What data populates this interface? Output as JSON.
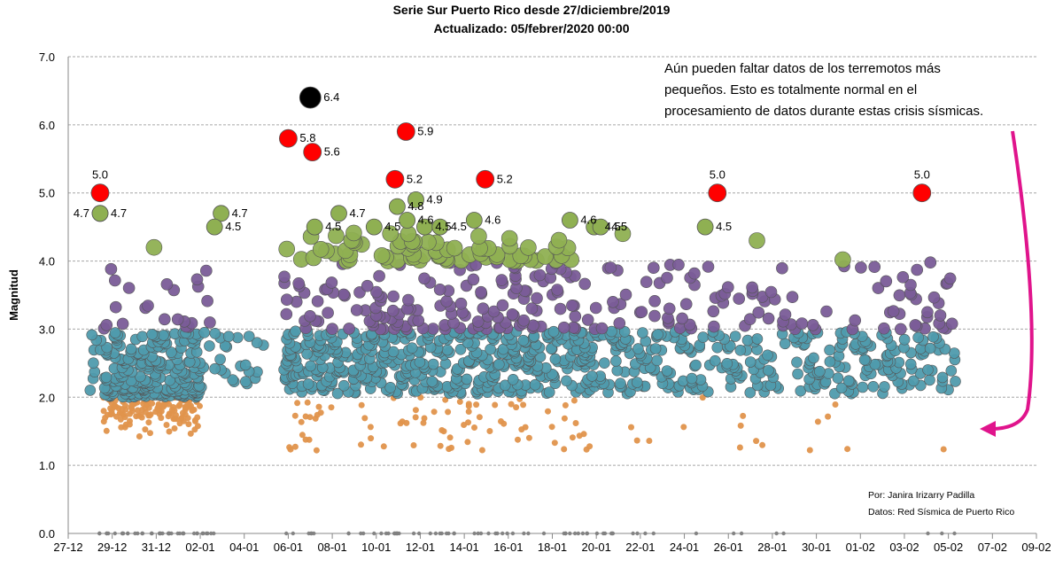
{
  "chart_data": {
    "type": "scatter",
    "title": "Serie Sur Puerto Rico desde 27/diciembre/2019",
    "subtitle": "Actualizado:   05/febrer/2020   00:00",
    "ylabel": "Magnitud",
    "xlabel": "",
    "ylim": [
      0,
      7
    ],
    "y_ticks": [
      "0.0",
      "1.0",
      "2.0",
      "3.0",
      "4.0",
      "5.0",
      "6.0",
      "7.0"
    ],
    "x_day_range": [
      0,
      44
    ],
    "x_ticks": [
      {
        "day": 0,
        "label": "27-12"
      },
      {
        "day": 2,
        "label": "29-12"
      },
      {
        "day": 4,
        "label": "31-12"
      },
      {
        "day": 6,
        "label": "02-01"
      },
      {
        "day": 8,
        "label": "04-01"
      },
      {
        "day": 10,
        "label": "06-01"
      },
      {
        "day": 12,
        "label": "08-01"
      },
      {
        "day": 14,
        "label": "10-01"
      },
      {
        "day": 16,
        "label": "12-01"
      },
      {
        "day": 18,
        "label": "14-01"
      },
      {
        "day": 20,
        "label": "16-01"
      },
      {
        "day": 22,
        "label": "18-01"
      },
      {
        "day": 24,
        "label": "20-01"
      },
      {
        "day": 26,
        "label": "22-01"
      },
      {
        "day": 28,
        "label": "24-01"
      },
      {
        "day": 30,
        "label": "26-01"
      },
      {
        "day": 32,
        "label": "28-01"
      },
      {
        "day": 34,
        "label": "30-01"
      },
      {
        "day": 36,
        "label": "01-02"
      },
      {
        "day": 38,
        "label": "03-02"
      },
      {
        "day": 40,
        "label": "05-02"
      },
      {
        "day": 42,
        "label": "07-02"
      },
      {
        "day": 44,
        "label": "09-02"
      }
    ],
    "grid": true,
    "colors": {
      "mag_0": "#808080",
      "mag_1_2": "#e0944c",
      "mag_2_3": "#4f9bad",
      "mag_3_4": "#7a5c98",
      "mag_4_5": "#8fb052",
      "mag_5_6": "#ff0000",
      "mag_6_plus": "#000000",
      "arrow": "#e0148c",
      "grid": "#a6a6a6"
    },
    "labeled_events": [
      {
        "day": 1.45,
        "mag": 5.0,
        "label": "5.0"
      },
      {
        "day": 1.45,
        "mag": 4.7,
        "label": "4.7"
      },
      {
        "day": 1.45,
        "mag": 4.7,
        "label": "4.7"
      },
      {
        "day": 6.95,
        "mag": 4.7,
        "label": "4.7"
      },
      {
        "day": 6.65,
        "mag": 4.5,
        "label": "4.5"
      },
      {
        "day": 11.0,
        "mag": 6.4,
        "label": "6.4"
      },
      {
        "day": 10.0,
        "mag": 5.8,
        "label": "5.8"
      },
      {
        "day": 11.1,
        "mag": 5.6,
        "label": "5.6"
      },
      {
        "day": 15.35,
        "mag": 5.9,
        "label": "5.9"
      },
      {
        "day": 14.85,
        "mag": 5.2,
        "label": "5.2"
      },
      {
        "day": 18.95,
        "mag": 5.2,
        "label": "5.2"
      },
      {
        "day": 11.2,
        "mag": 4.5,
        "label": "4.5"
      },
      {
        "day": 12.3,
        "mag": 4.7,
        "label": "4.7"
      },
      {
        "day": 13.9,
        "mag": 4.5,
        "label": "4.5"
      },
      {
        "day": 14.95,
        "mag": 4.8,
        "label": "4.8"
      },
      {
        "day": 15.8,
        "mag": 4.9,
        "label": "4.9"
      },
      {
        "day": 15.4,
        "mag": 4.6,
        "label": "4.6"
      },
      {
        "day": 16.2,
        "mag": 4.5,
        "label": "4.5"
      },
      {
        "day": 16.9,
        "mag": 4.5,
        "label": "4.5"
      },
      {
        "day": 18.45,
        "mag": 4.6,
        "label": "4.6"
      },
      {
        "day": 22.8,
        "mag": 4.6,
        "label": "4.6"
      },
      {
        "day": 23.9,
        "mag": 4.5,
        "label": "4.5"
      },
      {
        "day": 24.2,
        "mag": 4.5,
        "label": "4.5"
      },
      {
        "day": 28.95,
        "mag": 4.5,
        "label": "4.5"
      },
      {
        "day": 29.5,
        "mag": 5.0,
        "label": "5.0"
      },
      {
        "day": 38.8,
        "mag": 5.0,
        "label": "5.0"
      }
    ]
  },
  "annotation": {
    "lines": [
      "Aún pueden faltar datos de los terremotos  más",
      "pequeños.  Esto es totalmente normal en el",
      "procesamiento de datos durante estas crisis sísmicas."
    ]
  },
  "credits": {
    "author": "Por: Janira Irizarry Padilla",
    "source": "Datos: Red Sísmica de Puerto Rico"
  }
}
